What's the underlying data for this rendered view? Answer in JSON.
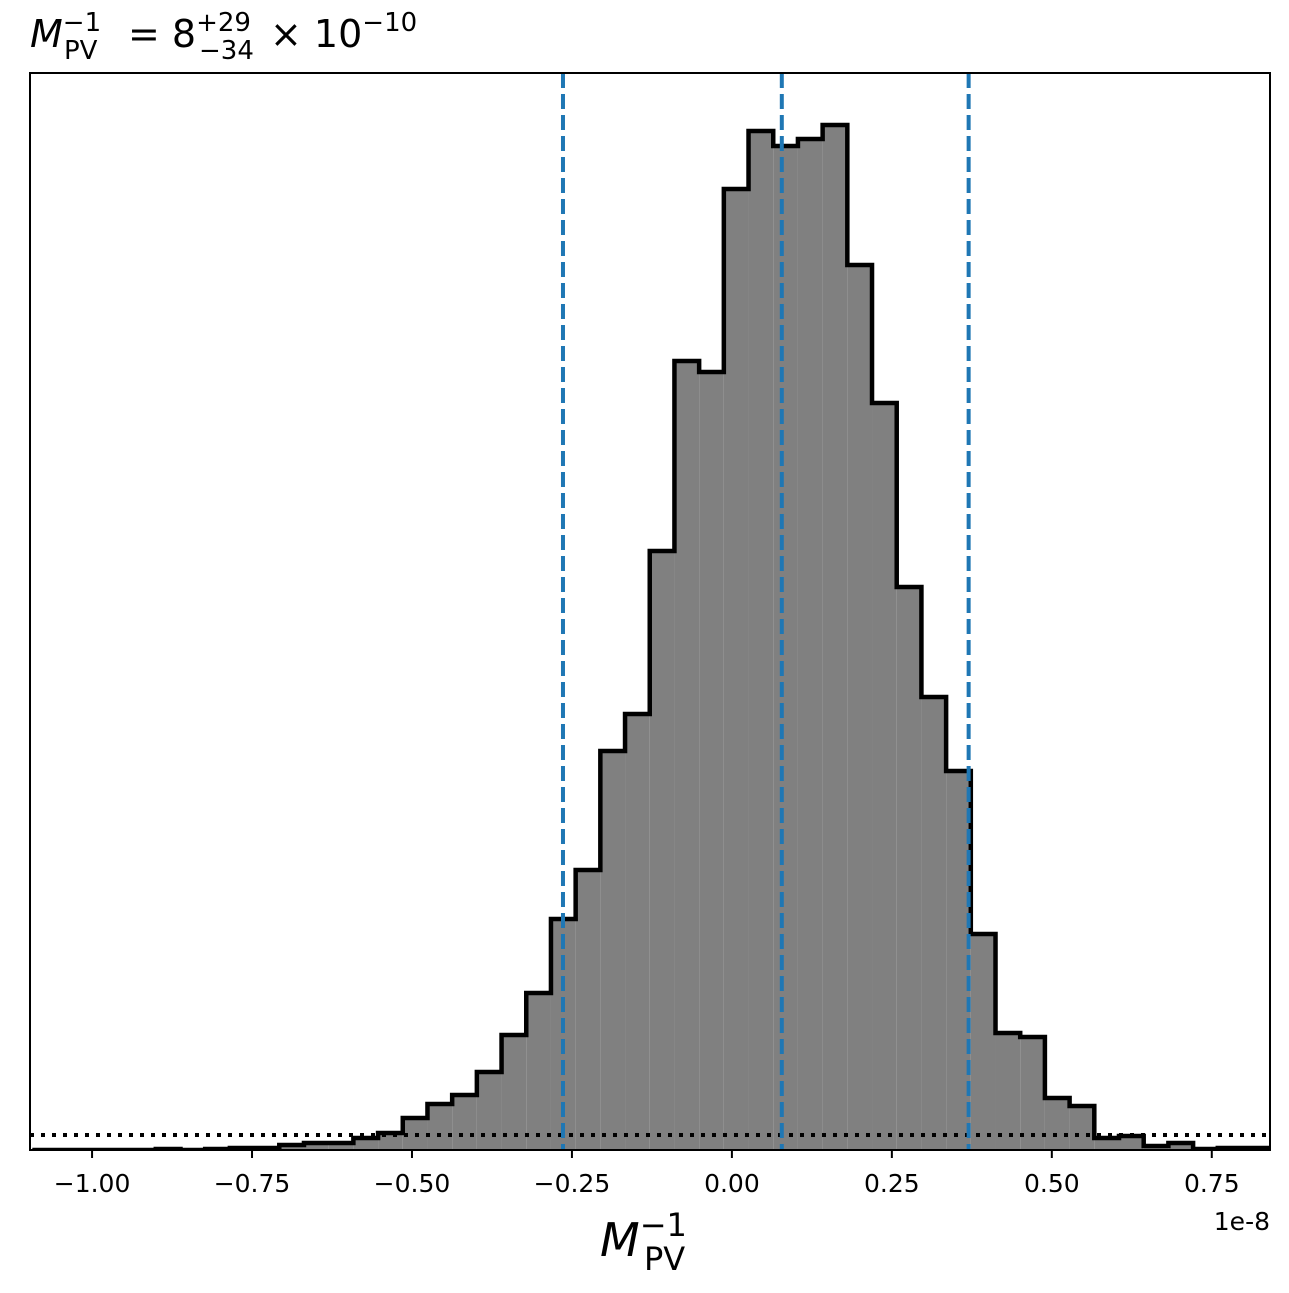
{
  "chart_data": {
    "type": "histogram",
    "title": {
      "symbol": "M",
      "subscript": "PV",
      "superscript": "−1",
      "equals": "= 8",
      "upper": "+29",
      "lower": "−34",
      "times": "× 10",
      "exponent": "−10"
    },
    "x_label": {
      "symbol": "M",
      "subscript": "PV",
      "superscript": "−1"
    },
    "x_offset_label": "1e-8",
    "bins": [
      -1.0934,
      -1.0548,
      -1.0162,
      -0.9776,
      -0.939,
      -0.9004,
      -0.8618,
      -0.8232,
      -0.7846,
      -0.746,
      -0.7074,
      -0.6688,
      -0.6302,
      -0.5916,
      -0.553,
      -0.5144,
      -0.4758,
      -0.4372,
      -0.3986,
      -0.36,
      -0.3214,
      -0.2828,
      -0.2442,
      -0.2056,
      -0.167,
      -0.1284,
      -0.0898,
      -0.0512,
      -0.0126,
      0.026,
      0.0646,
      0.1032,
      0.1418,
      0.1804,
      0.219,
      0.2576,
      0.2962,
      0.3348,
      0.3734,
      0.412,
      0.4506,
      0.4892,
      0.5278,
      0.5664,
      0.605,
      0.6436,
      0.6822,
      0.7208,
      0.7594,
      0.798,
      0.8366
    ],
    "values": [
      0,
      0,
      0,
      0,
      0,
      1,
      0,
      1,
      2,
      2,
      5,
      7,
      7,
      12,
      17,
      32,
      46,
      55,
      78,
      115,
      157,
      231,
      280,
      399,
      436,
      599,
      789,
      778,
      961,
      1019,
      1004,
      1011,
      1025,
      885,
      747,
      563,
      453,
      379,
      216,
      117,
      113,
      52,
      44,
      12,
      14,
      4,
      7,
      1,
      2,
      2
    ],
    "color": "#808080",
    "edge_color": "#000000",
    "xlim": [
      -1.097,
      0.841
    ],
    "ylim": [
      0,
      1077
    ],
    "xticks": [
      {
        "value": -1,
        "label": "−1.00"
      },
      {
        "value": -0.75,
        "label": "−0.75"
      },
      {
        "value": -0.5,
        "label": "−0.50"
      },
      {
        "value": -0.25,
        "label": "−0.25"
      },
      {
        "value": 0,
        "label": "0.00"
      },
      0.25,
      {
        "value": 0.5,
        "label": "0.50"
      },
      0.75
    ],
    "vlines": [
      -0.264,
      0.078,
      0.37
    ],
    "vline_color": "#1f77b4",
    "hline": 15,
    "hline_color": "#000000"
  }
}
